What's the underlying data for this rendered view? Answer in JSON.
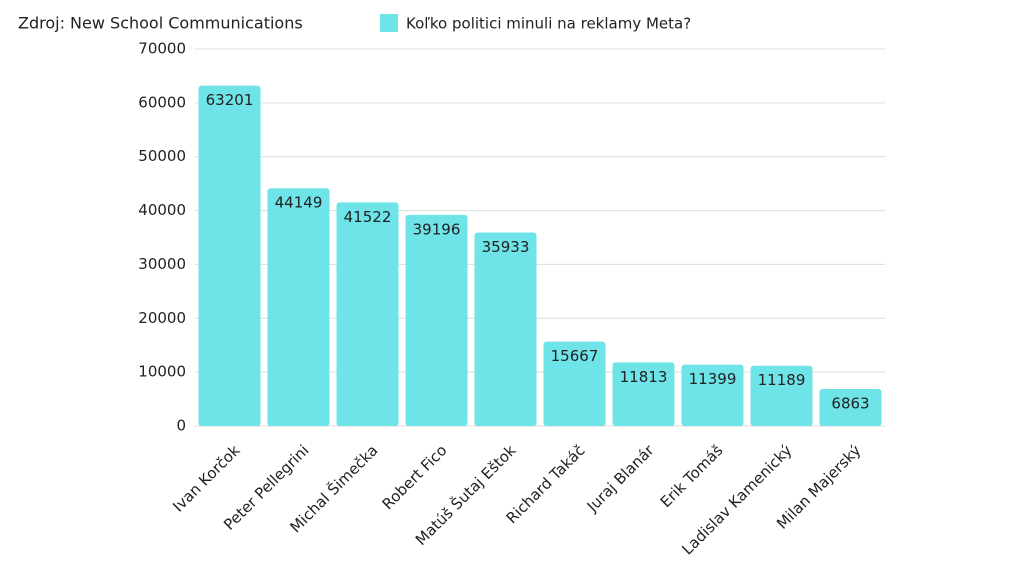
{
  "chart_data": {
    "type": "bar",
    "source": "Zdroj: New School Communications",
    "categories": [
      "Ivan Korčok",
      "Peter Pellegrini",
      "Michal Šimečka",
      "Robert Fico",
      "Matúš Šutaj Eštok",
      "Richard Takáč",
      "Juraj Blanár",
      "Erik Tomáš",
      "Ladislav Kamenický",
      "Milan Majerský"
    ],
    "series": [
      {
        "name": "Koľko politici minuli na reklamy Meta?",
        "color": "#6ee3e8",
        "values": [
          63201,
          44149,
          41522,
          39196,
          35933,
          15667,
          11813,
          11399,
          11189,
          6863
        ]
      }
    ],
    "ylim": [
      0,
      70000
    ],
    "yticks": [
      0,
      10000,
      20000,
      30000,
      40000,
      50000,
      60000,
      70000
    ],
    "grid": true,
    "legend": "top"
  }
}
